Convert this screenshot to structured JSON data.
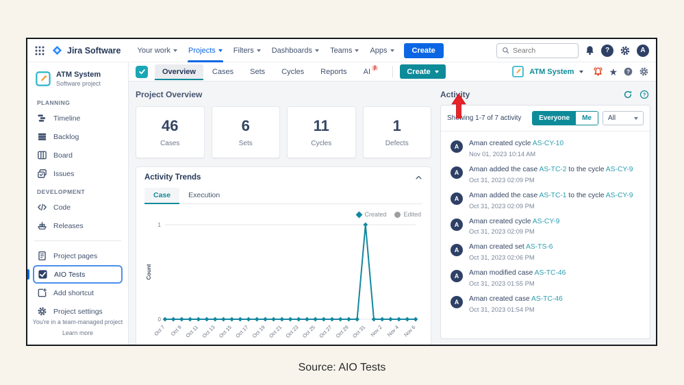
{
  "topnav": {
    "product": "Jira Software",
    "menu": [
      {
        "label": "Your work"
      },
      {
        "label": "Projects",
        "active": true
      },
      {
        "label": "Filters"
      },
      {
        "label": "Dashboards"
      },
      {
        "label": "Teams"
      },
      {
        "label": "Apps"
      }
    ],
    "create_label": "Create",
    "search_placeholder": "Search"
  },
  "sidebar": {
    "project_name": "ATM System",
    "project_type": "Software project",
    "sections": [
      {
        "title": "PLANNING",
        "items": [
          {
            "label": "Timeline",
            "icon": "timeline-icon"
          },
          {
            "label": "Backlog",
            "icon": "backlog-icon"
          },
          {
            "label": "Board",
            "icon": "board-icon"
          },
          {
            "label": "Issues",
            "icon": "issues-icon"
          }
        ]
      },
      {
        "title": "DEVELOPMENT",
        "items": [
          {
            "label": "Code",
            "icon": "code-icon"
          },
          {
            "label": "Releases",
            "icon": "releases-icon"
          }
        ]
      }
    ],
    "shortcuts": [
      {
        "label": "Project pages",
        "icon": "pages-icon"
      },
      {
        "label": "AIO Tests",
        "icon": "aio-tests-icon",
        "selected": true
      },
      {
        "label": "Add shortcut",
        "icon": "add-shortcut-icon"
      },
      {
        "label": "Project settings",
        "icon": "settings-icon"
      }
    ],
    "footer_line1": "You're in a team-managed project",
    "footer_line2": "Learn more"
  },
  "tabbar": {
    "tabs": [
      {
        "label": "Overview",
        "active": true
      },
      {
        "label": "Cases"
      },
      {
        "label": "Sets"
      },
      {
        "label": "Cycles"
      },
      {
        "label": "Reports"
      },
      {
        "label": "AI",
        "badge": "β"
      }
    ],
    "create_label": "Create",
    "project_chip": "ATM System"
  },
  "overview": {
    "title": "Project Overview",
    "cards": [
      {
        "value": "46",
        "label": "Cases"
      },
      {
        "value": "6",
        "label": "Sets"
      },
      {
        "value": "11",
        "label": "Cycles"
      },
      {
        "value": "1",
        "label": "Defects"
      }
    ]
  },
  "trends": {
    "title": "Activity Trends",
    "tabs": [
      {
        "label": "Case",
        "active": true
      },
      {
        "label": "Execution"
      }
    ],
    "legend": [
      {
        "label": "Created",
        "color": "#1387a0",
        "shape": "diamond"
      },
      {
        "label": "Edited",
        "color": "#9e9e9e",
        "shape": "circle"
      }
    ]
  },
  "chart_data": {
    "type": "line",
    "title": "Activity Trends - Case",
    "xlabel": "",
    "ylabel": "Count",
    "ylim": [
      0,
      1
    ],
    "yticks": [
      0,
      1
    ],
    "grid": true,
    "legend_position": "top-right",
    "x": [
      "Oct 7",
      "Oct 8",
      "Oct 9",
      "Oct 10",
      "Oct 11",
      "Oct 12",
      "Oct 13",
      "Oct 14",
      "Oct 15",
      "Oct 16",
      "Oct 17",
      "Oct 18",
      "Oct 19",
      "Oct 20",
      "Oct 21",
      "Oct 22",
      "Oct 23",
      "Oct 24",
      "Oct 25",
      "Oct 26",
      "Oct 27",
      "Oct 28",
      "Oct 29",
      "Oct 30",
      "Oct 31",
      "Nov 1",
      "Nov 2",
      "Nov 3",
      "Nov 4",
      "Nov 5",
      "Nov 6"
    ],
    "tick_every": 2,
    "series": [
      {
        "name": "Created",
        "color": "#1387a0",
        "marker": "diamond",
        "values": [
          0,
          0,
          0,
          0,
          0,
          0,
          0,
          0,
          0,
          0,
          0,
          0,
          0,
          0,
          0,
          0,
          0,
          0,
          0,
          0,
          0,
          0,
          0,
          0,
          1,
          0,
          0,
          0,
          0,
          0,
          0
        ]
      },
      {
        "name": "Edited",
        "color": "#9e9e9e",
        "marker": "circle",
        "visible": false,
        "values": [
          0,
          0,
          0,
          0,
          0,
          0,
          0,
          0,
          0,
          0,
          0,
          0,
          0,
          0,
          0,
          0,
          0,
          0,
          0,
          0,
          0,
          0,
          0,
          0,
          0,
          0,
          0,
          0,
          0,
          0,
          0
        ]
      }
    ]
  },
  "activity": {
    "title": "Activity",
    "showing": "Showing 1-7 of 7 activity",
    "toggle": [
      {
        "label": "Everyone",
        "active": true
      },
      {
        "label": "Me"
      }
    ],
    "filter": "All",
    "items": [
      {
        "avatar": "A",
        "parts": [
          {
            "text": "Aman created cycle "
          },
          {
            "text": "AS-CY-10",
            "link": true
          }
        ],
        "time": "Nov 01, 2023 10:14 AM"
      },
      {
        "avatar": "A",
        "parts": [
          {
            "text": "Aman added the case "
          },
          {
            "text": "AS-TC-2",
            "link": true
          },
          {
            "text": " to the cycle "
          },
          {
            "text": "AS-CY-9",
            "link": true
          }
        ],
        "time": "Oct 31, 2023 02:09 PM"
      },
      {
        "avatar": "A",
        "parts": [
          {
            "text": "Aman added the case "
          },
          {
            "text": "AS-TC-1",
            "link": true
          },
          {
            "text": " to the cycle "
          },
          {
            "text": "AS-CY-9",
            "link": true
          }
        ],
        "time": "Oct 31, 2023 02:09 PM"
      },
      {
        "avatar": "A",
        "parts": [
          {
            "text": "Aman created cycle "
          },
          {
            "text": "AS-CY-9",
            "link": true
          }
        ],
        "time": "Oct 31, 2023 02:09 PM"
      },
      {
        "avatar": "A",
        "parts": [
          {
            "text": "Aman created set "
          },
          {
            "text": "AS-TS-6",
            "link": true
          }
        ],
        "time": "Oct 31, 2023 02:06 PM"
      },
      {
        "avatar": "A",
        "parts": [
          {
            "text": "Aman modified case "
          },
          {
            "text": "AS-TC-46",
            "link": true
          }
        ],
        "time": "Oct 31, 2023 01:55 PM"
      },
      {
        "avatar": "A",
        "parts": [
          {
            "text": "Aman created case "
          },
          {
            "text": "AS-TC-46",
            "link": true
          }
        ],
        "time": "Oct 31, 2023 01:54 PM"
      }
    ]
  },
  "caption": "Source: AIO Tests",
  "colors": {
    "accent_teal": "#0e8b99",
    "link_teal": "#2a9db0",
    "brand_blue": "#0c66e4",
    "navy": "#2e4066",
    "alert_red": "#de350b",
    "annotation_red": "#e8232a",
    "page_bg": "#f8f4ec"
  }
}
